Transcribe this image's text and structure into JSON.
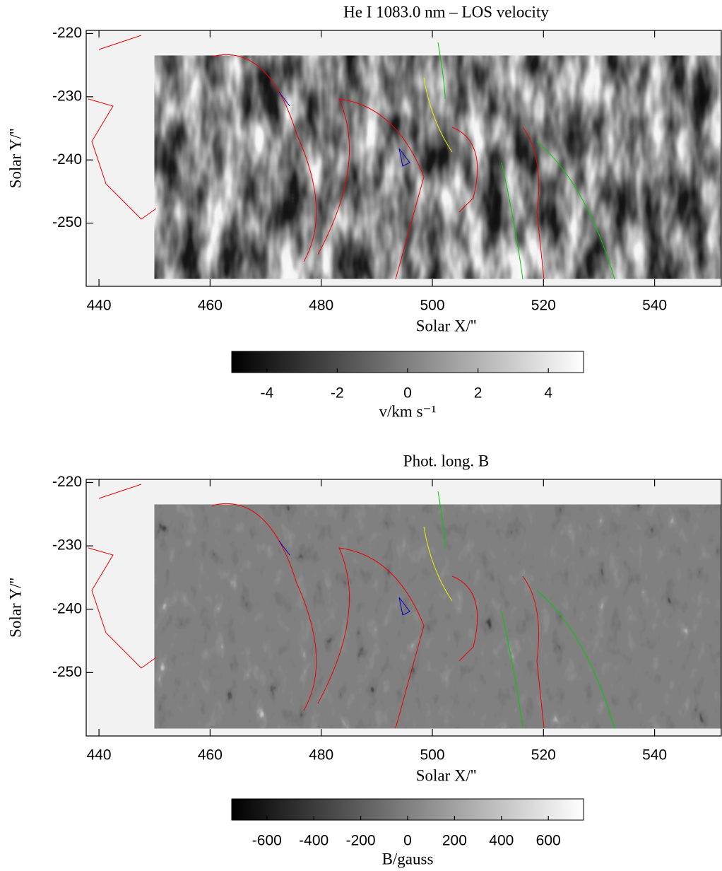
{
  "chart_data": [
    {
      "type": "image",
      "title": "He I 1083.0 nm – LOS velocity",
      "xlabel": "Solar X/''",
      "ylabel": "Solar Y/''",
      "xlim": [
        437.7,
        552
      ],
      "ylim": [
        -260,
        -219.5
      ],
      "xticks": [
        440,
        460,
        480,
        500,
        520,
        540
      ],
      "yticks": [
        -220,
        -230,
        -240,
        -250
      ],
      "extent": {
        "x": [
          450,
          552
        ],
        "y": [
          -258.8,
          -223.5
        ]
      },
      "colorbar": {
        "label": "v/km s⁻¹",
        "lim": [
          -5,
          5
        ],
        "ticks": [
          -4,
          -2,
          0,
          2,
          4
        ]
      }
    },
    {
      "type": "image",
      "title": "Phot. long. B",
      "xlabel": "Solar X/''",
      "ylabel": "Solar Y/''",
      "xlim": [
        437.7,
        552
      ],
      "ylim": [
        -260,
        -219.5
      ],
      "xticks": [
        440,
        460,
        480,
        500,
        520,
        540
      ],
      "yticks": [
        -220,
        -230,
        -240,
        -250
      ],
      "extent": {
        "x": [
          450,
          552
        ],
        "y": [
          -258.8,
          -223.5
        ]
      },
      "colorbar": {
        "label": "B/gauss",
        "lim": [
          -750,
          750
        ],
        "ticks": [
          -600,
          -400,
          -200,
          0,
          200,
          400,
          600
        ]
      }
    }
  ]
}
